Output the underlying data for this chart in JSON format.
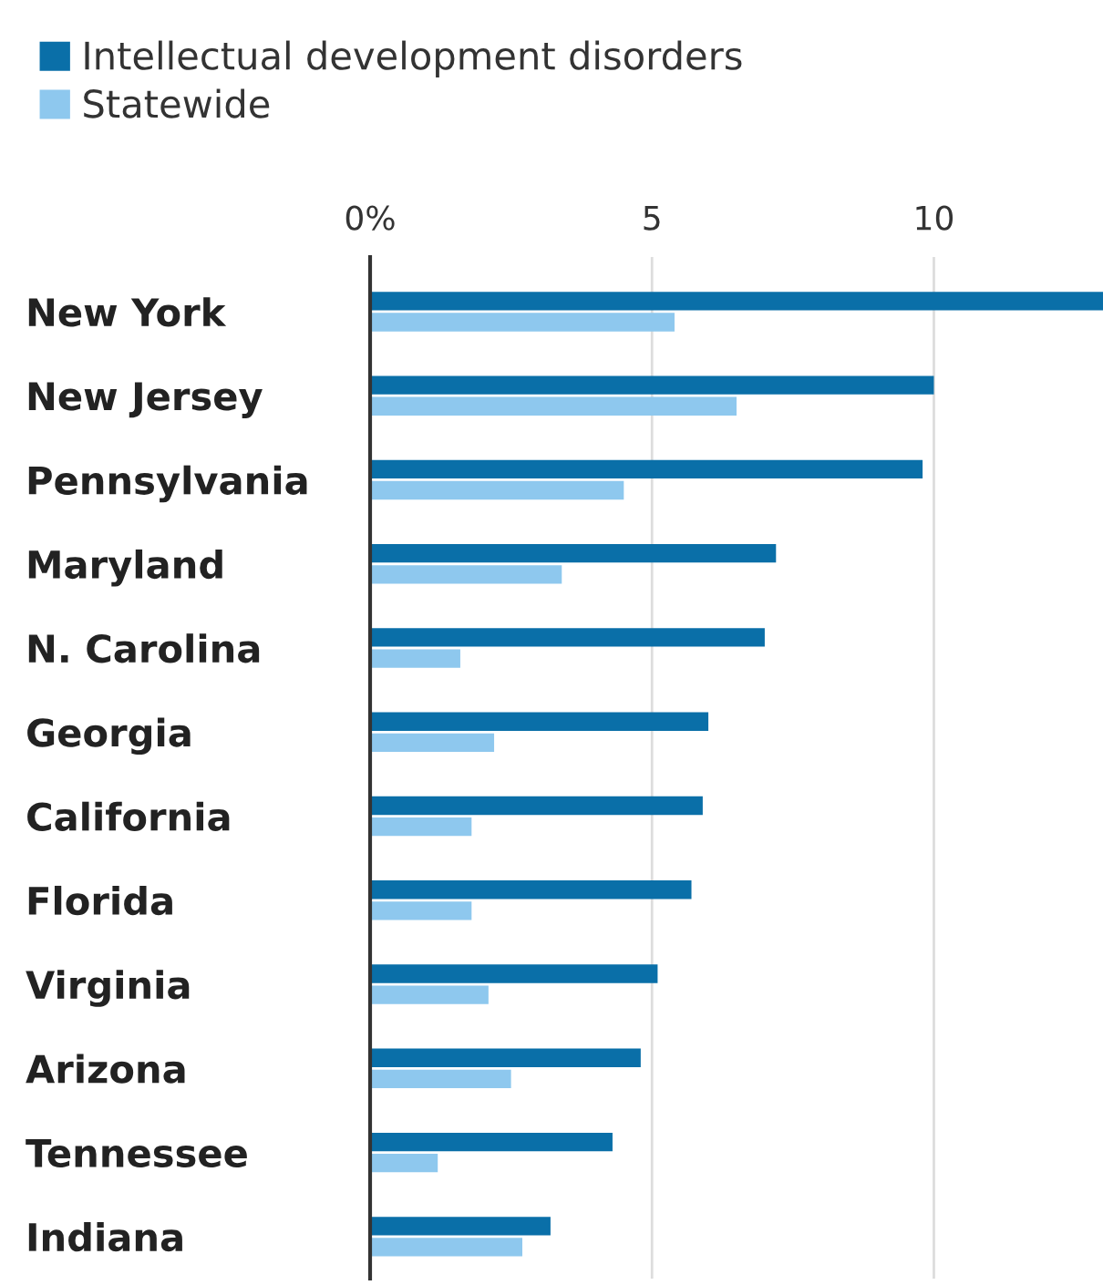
{
  "chart_data": {
    "type": "bar",
    "orientation": "horizontal",
    "categories": [
      "New York",
      "New Jersey",
      "Pennsylvania",
      "Maryland",
      "N. Carolina",
      "Georgia",
      "California",
      "Florida",
      "Virginia",
      "Arizona",
      "Tennessee",
      "Indiana"
    ],
    "series": [
      {
        "name": "Intellectual development disorders",
        "color": "#0a6fa8",
        "values": [
          13.0,
          10.0,
          9.8,
          7.2,
          7.0,
          6.0,
          5.9,
          5.7,
          5.1,
          4.8,
          4.3,
          3.2
        ]
      },
      {
        "name": "Statewide",
        "color": "#8ec8ee",
        "values": [
          5.4,
          6.5,
          4.5,
          3.4,
          1.6,
          2.2,
          1.8,
          1.8,
          2.1,
          2.5,
          1.2,
          2.7
        ]
      }
    ],
    "xlim": [
      0,
      13
    ],
    "xticks": [
      {
        "value": 0,
        "label": "0%"
      },
      5,
      10
    ],
    "grid": "x",
    "legend": "top left"
  }
}
